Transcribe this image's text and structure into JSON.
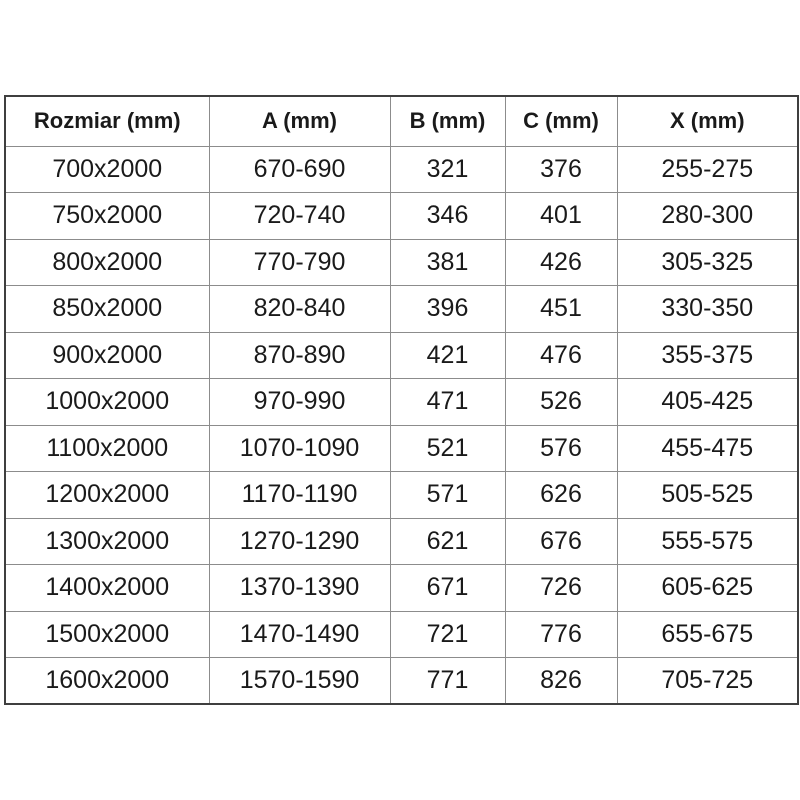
{
  "chart_data": {
    "type": "table",
    "columns": [
      "Rozmiar (mm)",
      "A (mm)",
      "B (mm)",
      "C (mm)",
      "X (mm)"
    ],
    "rows": [
      [
        "700x2000",
        "670-690",
        "321",
        "376",
        "255-275"
      ],
      [
        "750x2000",
        "720-740",
        "346",
        "401",
        "280-300"
      ],
      [
        "800x2000",
        "770-790",
        "381",
        "426",
        "305-325"
      ],
      [
        "850x2000",
        "820-840",
        "396",
        "451",
        "330-350"
      ],
      [
        "900x2000",
        "870-890",
        "421",
        "476",
        "355-375"
      ],
      [
        "1000x2000",
        "970-990",
        "471",
        "526",
        "405-425"
      ],
      [
        "1100x2000",
        "1070-1090",
        "521",
        "576",
        "455-475"
      ],
      [
        "1200x2000",
        "1170-1190",
        "571",
        "626",
        "505-525"
      ],
      [
        "1300x2000",
        "1270-1290",
        "621",
        "676",
        "555-575"
      ],
      [
        "1400x2000",
        "1370-1390",
        "671",
        "726",
        "605-625"
      ],
      [
        "1500x2000",
        "1470-1490",
        "721",
        "776",
        "655-675"
      ],
      [
        "1600x2000",
        "1570-1590",
        "771",
        "826",
        "705-725"
      ]
    ],
    "layout_hints": {
      "header_row": true,
      "all_cells_centered": true,
      "grid": "full"
    }
  },
  "colors": {
    "outer_border": "#3f3f3f",
    "inner_border": "#8c8c8c",
    "text": "#1a1a1a",
    "background": "#ffffff"
  }
}
